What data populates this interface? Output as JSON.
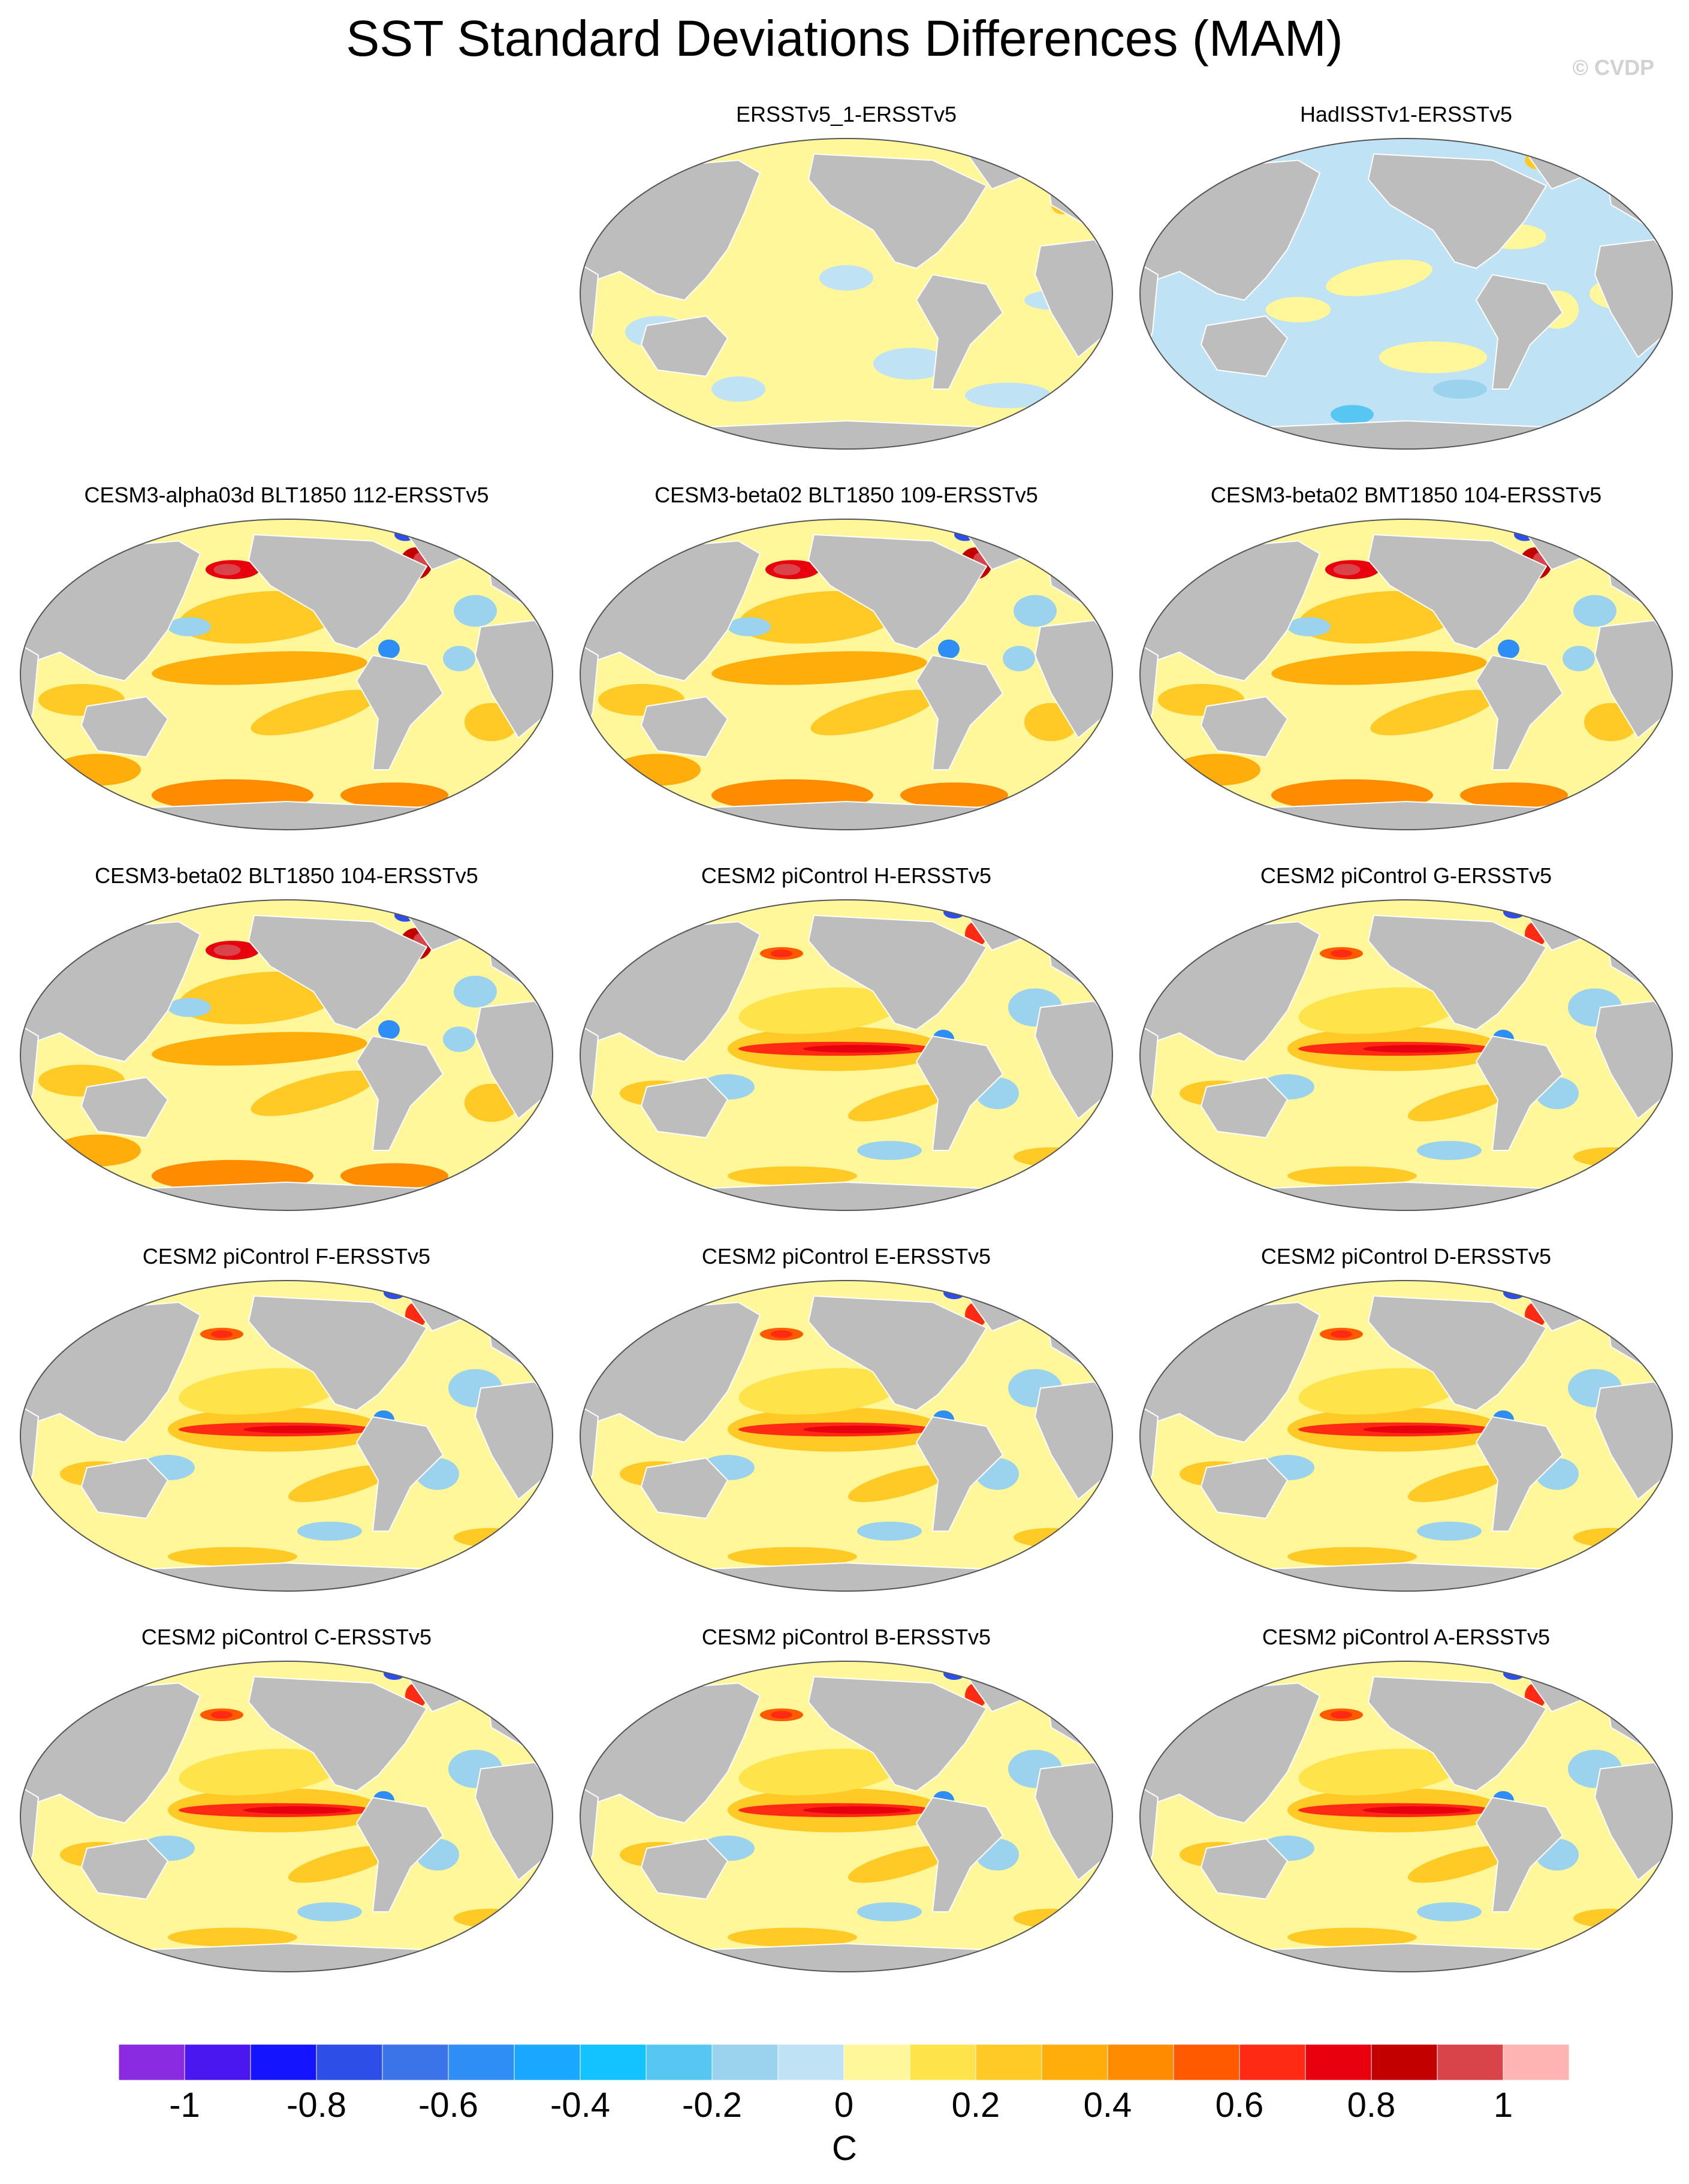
{
  "title": "SST Standard Deviations Differences (MAM)",
  "copyright": "© CVDP",
  "colors": {
    "land": "#bdbdbd",
    "ocean_zero_pos": "#fff79a",
    "ocean_zero_neg": "#bfe2f5",
    "outline": "#555555"
  },
  "panels": [
    {
      "label": "ERSSTv5_1-ERSSTv5",
      "pattern": "obs_pos"
    },
    {
      "label": "HadISSTv1-ERSSTv5",
      "pattern": "obs_neg"
    },
    {
      "label": "CESM3-alpha03d BLT1850 112-ERSSTv5",
      "pattern": "cesm3"
    },
    {
      "label": "CESM3-beta02 BLT1850 109-ERSSTv5",
      "pattern": "cesm3"
    },
    {
      "label": "CESM3-beta02 BMT1850 104-ERSSTv5",
      "pattern": "cesm3"
    },
    {
      "label": "CESM3-beta02 BLT1850 104-ERSSTv5",
      "pattern": "cesm3"
    },
    {
      "label": "CESM2 piControl H-ERSSTv5",
      "pattern": "cesm2"
    },
    {
      "label": "CESM2 piControl G-ERSSTv5",
      "pattern": "cesm2"
    },
    {
      "label": "CESM2 piControl F-ERSSTv5",
      "pattern": "cesm2"
    },
    {
      "label": "CESM2 piControl E-ERSSTv5",
      "pattern": "cesm2"
    },
    {
      "label": "CESM2 piControl D-ERSSTv5",
      "pattern": "cesm2"
    },
    {
      "label": "CESM2 piControl C-ERSSTv5",
      "pattern": "cesm2"
    },
    {
      "label": "CESM2 piControl B-ERSSTv5",
      "pattern": "cesm2"
    },
    {
      "label": "CESM2 piControl A-ERSSTv5",
      "pattern": "cesm2"
    }
  ],
  "colorbar": {
    "colors": [
      "#8a2be2",
      "#4b17f0",
      "#1414ff",
      "#2d4fe8",
      "#3a74e8",
      "#2e8ef5",
      "#1aa7ff",
      "#12c3ff",
      "#58c6f2",
      "#9bd2ee",
      "#bfe2f5",
      "#fff79a",
      "#ffe34a",
      "#ffca26",
      "#ffad0a",
      "#ff8c00",
      "#ff5a00",
      "#ff2a14",
      "#e8000e",
      "#c20000",
      "#d9434a",
      "#ffb4b4"
    ],
    "tick_labels": [
      "-1",
      "-0.8",
      "-0.6",
      "-0.4",
      "-0.2",
      "0",
      "0.2",
      "0.4",
      "0.6",
      "0.8",
      "1"
    ],
    "units": "C"
  }
}
